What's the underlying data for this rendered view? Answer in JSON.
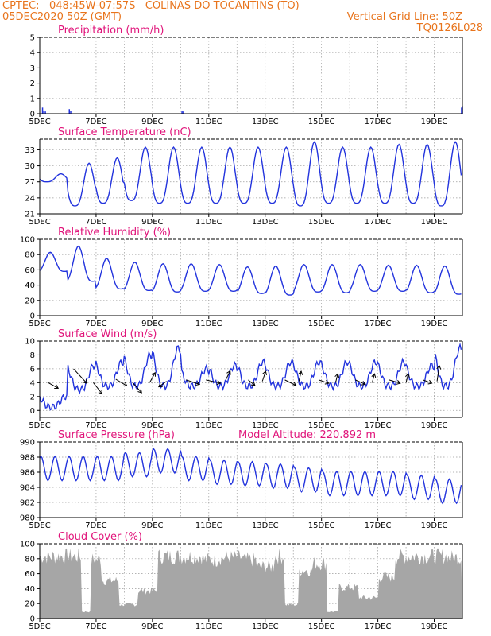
{
  "header": {
    "source": "CPTEC:",
    "coords": "048:45W-07:57S",
    "location": "COLINAS DO TOCANTINS (TO)",
    "date": "05DEC2020 50Z (GMT)",
    "grid_note": "Vertical Grid Line: 50Z",
    "model_code": "TQ0126L028"
  },
  "colors": {
    "header": "#e8741c",
    "title": "#e0147a",
    "line": "#2233dd",
    "cloud": "#a6a6a6",
    "grid": "#9a9a9a"
  },
  "x_axis_labels": [
    "5DEC",
    "7DEC",
    "9DEC",
    "11DEC",
    "13DEC",
    "15DEC",
    "17DEC",
    "19DEC"
  ],
  "chart_data": [
    {
      "id": "precip",
      "type": "bar",
      "title": "Precipitation (mm/h)",
      "ylim": [
        0,
        5
      ],
      "yticks": [
        0,
        1,
        2,
        3,
        4,
        5
      ],
      "x_range_days": [
        5,
        20
      ],
      "grid": true,
      "points": [
        [
          5.1,
          0.4
        ],
        [
          5.15,
          0.2
        ],
        [
          5.2,
          0.15
        ],
        [
          6.05,
          0.3
        ],
        [
          6.1,
          0.2
        ],
        [
          10.05,
          0.2
        ],
        [
          10.1,
          0.15
        ],
        [
          19.97,
          0.4
        ],
        [
          20.0,
          0.5
        ]
      ]
    },
    {
      "id": "temp",
      "type": "line",
      "title": "Surface Temperature (nC)",
      "ylim": [
        21,
        35
      ],
      "yticks": [
        21,
        24,
        27,
        30,
        33
      ],
      "x_range_days": [
        5,
        20
      ],
      "grid": true,
      "x_start": 5,
      "x_end": 20,
      "samples_per_day": 24,
      "daily_max": [
        28.5,
        30.5,
        31.5,
        33.5,
        33.5,
        33.5,
        33.5,
        33.5,
        33.5,
        34.5,
        33.5,
        33.5,
        34,
        34,
        34.5,
        32.5
      ],
      "daily_min": [
        27,
        22.5,
        23,
        23.5,
        23,
        23,
        23,
        23,
        23,
        22.5,
        23,
        23,
        23,
        23,
        22.5,
        23
      ]
    },
    {
      "id": "rh",
      "type": "line",
      "title": "Relative Humidity (%)",
      "ylim": [
        0,
        100
      ],
      "yticks": [
        0,
        20,
        40,
        60,
        80,
        100
      ],
      "x_range_days": [
        5,
        20
      ],
      "grid": true,
      "daily_max": [
        83,
        91,
        75,
        70,
        68,
        68,
        67,
        64,
        65,
        67,
        67,
        67,
        66,
        66,
        65,
        48
      ],
      "daily_min": [
        58,
        45,
        35,
        33,
        31,
        32,
        32,
        29,
        27,
        31,
        30,
        32,
        32,
        30,
        28,
        40
      ]
    },
    {
      "id": "wind",
      "type": "line",
      "title": "Surface Wind (m/s)",
      "ylim": [
        -1,
        10
      ],
      "yticks": [
        0,
        2,
        4,
        6,
        8,
        10
      ],
      "x_range_days": [
        5,
        20
      ],
      "grid": true,
      "daily_max": [
        2,
        6.5,
        7,
        8,
        9,
        6,
        6.5,
        7,
        7,
        7,
        7,
        7,
        7,
        6.5,
        9,
        4
      ],
      "daily_min": [
        0.5,
        3,
        3.5,
        3.5,
        3.5,
        3.5,
        3.5,
        3.5,
        3.5,
        3.5,
        3.5,
        3.5,
        3.5,
        3.5,
        3.5,
        3
      ],
      "vectors": [
        [
          5.3,
          4,
          0.9,
          0.5
        ],
        [
          6.2,
          6,
          1.2,
          1.3
        ],
        [
          6.9,
          4,
          0.8,
          1.0
        ],
        [
          7.7,
          4.5,
          1.0,
          0.6
        ],
        [
          8.3,
          4,
          0.8,
          0.9
        ],
        [
          8.9,
          4,
          0.5,
          -0.9
        ],
        [
          9.5,
          4.2,
          -0.7,
          0.5
        ],
        [
          10.2,
          4.4,
          1.2,
          0.4
        ],
        [
          10.9,
          4.4,
          1.3,
          0.3
        ],
        [
          11.6,
          4.4,
          0.4,
          -0.8
        ],
        [
          12.4,
          4.4,
          0.6,
          0.5
        ],
        [
          12.9,
          4.2,
          0.3,
          -0.9
        ],
        [
          13.7,
          4.4,
          1.0,
          0.5
        ],
        [
          14.2,
          4.2,
          0.2,
          -0.9
        ],
        [
          14.9,
          4.4,
          0.9,
          0.3
        ],
        [
          15.5,
          4.0,
          0.2,
          -0.8
        ],
        [
          16.2,
          4.4,
          0.9,
          0.4
        ],
        [
          16.8,
          4.0,
          0.2,
          -0.8
        ],
        [
          17.4,
          4.4,
          1.0,
          0.3
        ],
        [
          18.0,
          4.0,
          0.2,
          -0.8
        ],
        [
          18.6,
          4.4,
          0.8,
          0.3
        ],
        [
          19.1,
          4.2,
          0.2,
          -1.4
        ]
      ]
    },
    {
      "id": "pres",
      "type": "line",
      "title": "Surface Pressure (hPa)",
      "subtitle": "Model Altitude: 220.892 m",
      "ylim": [
        980,
        990
      ],
      "yticks": [
        980,
        982,
        984,
        986,
        988,
        990
      ],
      "x_range_days": [
        5,
        20
      ],
      "grid": true,
      "daily_level": [
        986.5,
        986.5,
        986.5,
        987,
        987.5,
        986.5,
        986,
        985.8,
        985.5,
        985,
        984.5,
        984.5,
        984.5,
        984,
        983.5,
        982.5
      ],
      "semidiurnal_amp": 1.6
    },
    {
      "id": "cloud",
      "type": "area",
      "title": "Cloud Cover (%)",
      "ylim": [
        0,
        100
      ],
      "yticks": [
        0,
        20,
        40,
        60,
        80,
        100
      ],
      "x_range_days": [
        5,
        20
      ],
      "grid": true,
      "segments": [
        [
          5.0,
          6.5,
          90
        ],
        [
          6.5,
          6.8,
          10
        ],
        [
          6.8,
          7.2,
          85
        ],
        [
          7.2,
          7.8,
          55
        ],
        [
          7.8,
          8.5,
          20
        ],
        [
          8.5,
          9.2,
          40
        ],
        [
          9.2,
          9.5,
          90
        ],
        [
          9.5,
          10.8,
          90
        ],
        [
          10.8,
          11.3,
          85
        ],
        [
          11.3,
          12.2,
          88
        ],
        [
          12.2,
          12.7,
          85
        ],
        [
          12.7,
          13.3,
          75
        ],
        [
          13.3,
          13.7,
          90
        ],
        [
          13.7,
          14.2,
          20
        ],
        [
          14.2,
          14.7,
          70
        ],
        [
          14.7,
          15.2,
          80
        ],
        [
          15.2,
          15.6,
          10
        ],
        [
          15.6,
          16.3,
          45
        ],
        [
          16.3,
          17.0,
          30
        ],
        [
          17.0,
          17.6,
          60
        ],
        [
          17.6,
          18.4,
          90
        ],
        [
          18.4,
          19.0,
          90
        ],
        [
          19.0,
          19.5,
          90
        ],
        [
          19.5,
          20.0,
          88
        ]
      ]
    }
  ]
}
